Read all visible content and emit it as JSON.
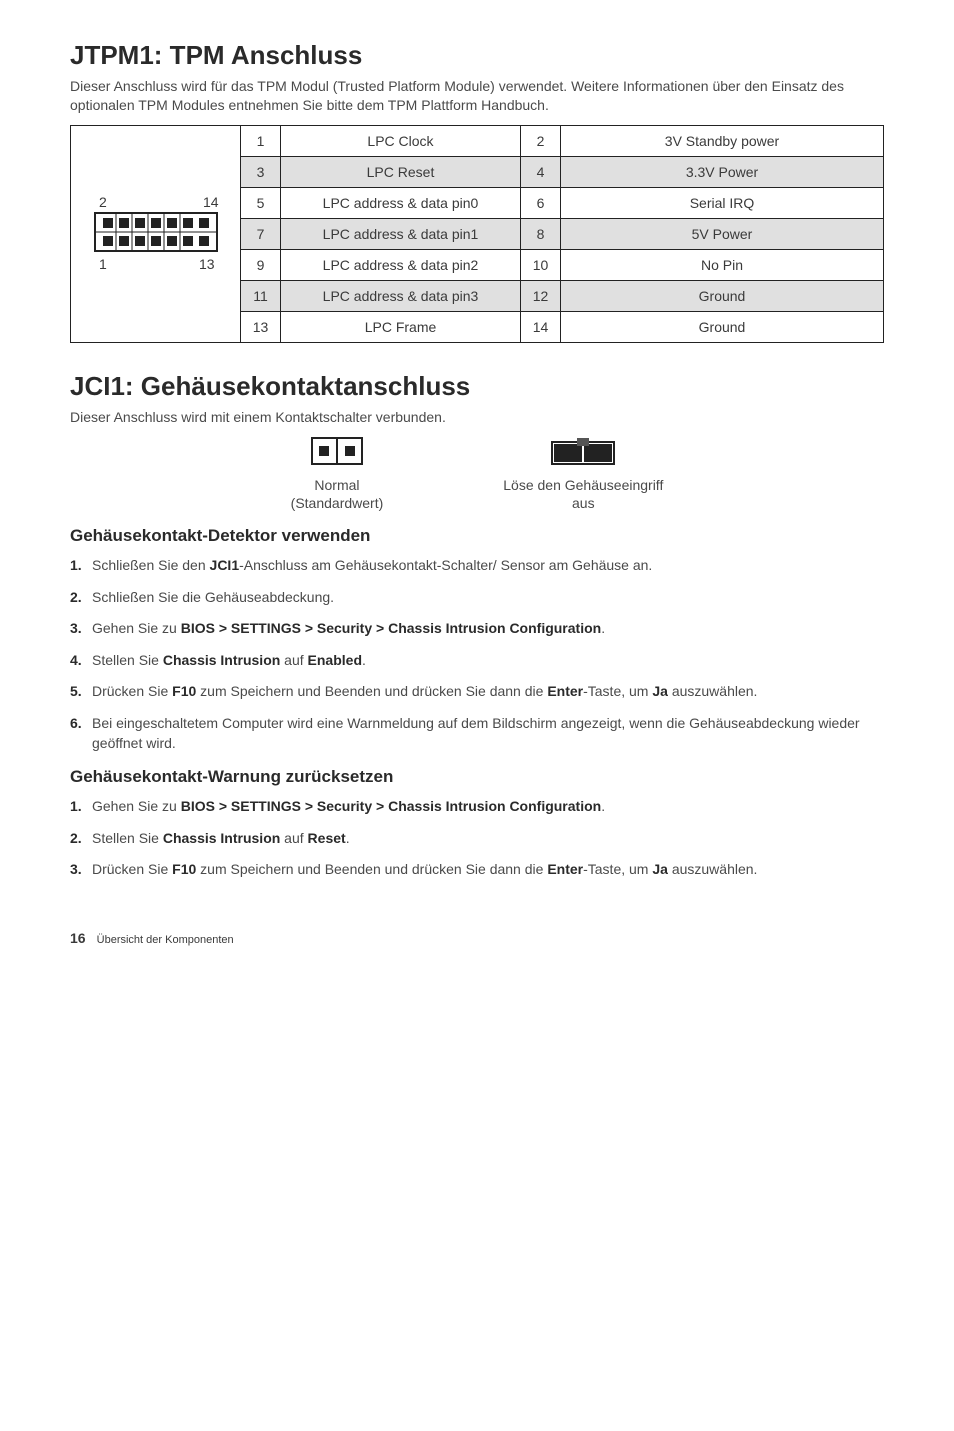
{
  "jtpm": {
    "heading": "JTPM1: TPM Anschluss",
    "desc": "Dieser Anschluss wird für das TPM Modul (Trusted Platform Module) verwendet. Weitere Informationen über den Einsatz des optionalen TPM Modules entnehmen Sie bitte dem TPM Plattform Handbuch.",
    "diagram": {
      "top_left": "2",
      "top_right": "14",
      "bot_left": "1",
      "bot_right": "13"
    },
    "rows": [
      {
        "n1": "1",
        "t1": "LPC Clock",
        "n2": "2",
        "t2": "3V Standby power",
        "shade": false
      },
      {
        "n1": "3",
        "t1": "LPC Reset",
        "n2": "4",
        "t2": "3.3V Power",
        "shade": true
      },
      {
        "n1": "5",
        "t1": "LPC address & data pin0",
        "n2": "6",
        "t2": "Serial IRQ",
        "shade": false
      },
      {
        "n1": "7",
        "t1": "LPC address & data pin1",
        "n2": "8",
        "t2": "5V Power",
        "shade": true
      },
      {
        "n1": "9",
        "t1": "LPC address & data pin2",
        "n2": "10",
        "t2": "No Pin",
        "shade": false
      },
      {
        "n1": "11",
        "t1": "LPC address & data pin3",
        "n2": "12",
        "t2": "Ground",
        "shade": true
      },
      {
        "n1": "13",
        "t1": "LPC Frame",
        "n2": "14",
        "t2": "Ground",
        "shade": false
      }
    ]
  },
  "jci": {
    "heading": "JCI1: Gehäusekontaktanschluss",
    "desc": "Dieser Anschluss wird mit einem Kontaktschalter verbunden.",
    "left_label1": "Normal",
    "left_label2": "(Standardwert)",
    "right_label1": "Löse den Gehäuseeingriff",
    "right_label2": "aus"
  },
  "use": {
    "heading": "Gehäusekontakt-Detektor verwenden",
    "items": [
      [
        "Schließen Sie den ",
        "JCI1",
        "-Anschluss am Gehäusekontakt-Schalter/ Sensor am Gehäuse an."
      ],
      [
        "Schließen Sie die Gehäuseabdeckung."
      ],
      [
        "Gehen Sie zu  ",
        "BIOS > SETTINGS > Security > Chassis Intrusion Configuration",
        "."
      ],
      [
        "Stellen Sie ",
        "Chassis Intrusion",
        " auf ",
        "Enabled",
        "."
      ],
      [
        "Drücken Sie ",
        "F10",
        " zum Speichern und Beenden und drücken Sie dann die ",
        "Enter",
        "-Taste, um ",
        "Ja",
        " auszuwählen."
      ],
      [
        "Bei eingeschaltetem Computer wird eine Warnmeldung auf dem Bildschirm angezeigt, wenn die Gehäuseabdeckung wieder geöffnet wird."
      ]
    ]
  },
  "reset": {
    "heading": "Gehäusekontakt-Warnung zurücksetzen",
    "items": [
      [
        "Gehen Sie zu  ",
        "BIOS > SETTINGS > Security > Chassis Intrusion Configuration",
        "."
      ],
      [
        "Stellen Sie ",
        "Chassis Intrusion",
        " auf  ",
        "Reset",
        "."
      ],
      [
        "Drücken Sie ",
        "F10",
        " zum Speichern und Beenden und drücken Sie dann die ",
        "Enter",
        "-Taste, um ",
        "Ja",
        " auszuwählen."
      ]
    ]
  },
  "footer": {
    "page": "16",
    "section": "Übersicht der Komponenten"
  },
  "colors": {
    "border": "#222222",
    "shade": "#e0e0e0",
    "text_body": "#4a4a4a",
    "text_head": "#2a2a2a",
    "bg": "#ffffff"
  }
}
